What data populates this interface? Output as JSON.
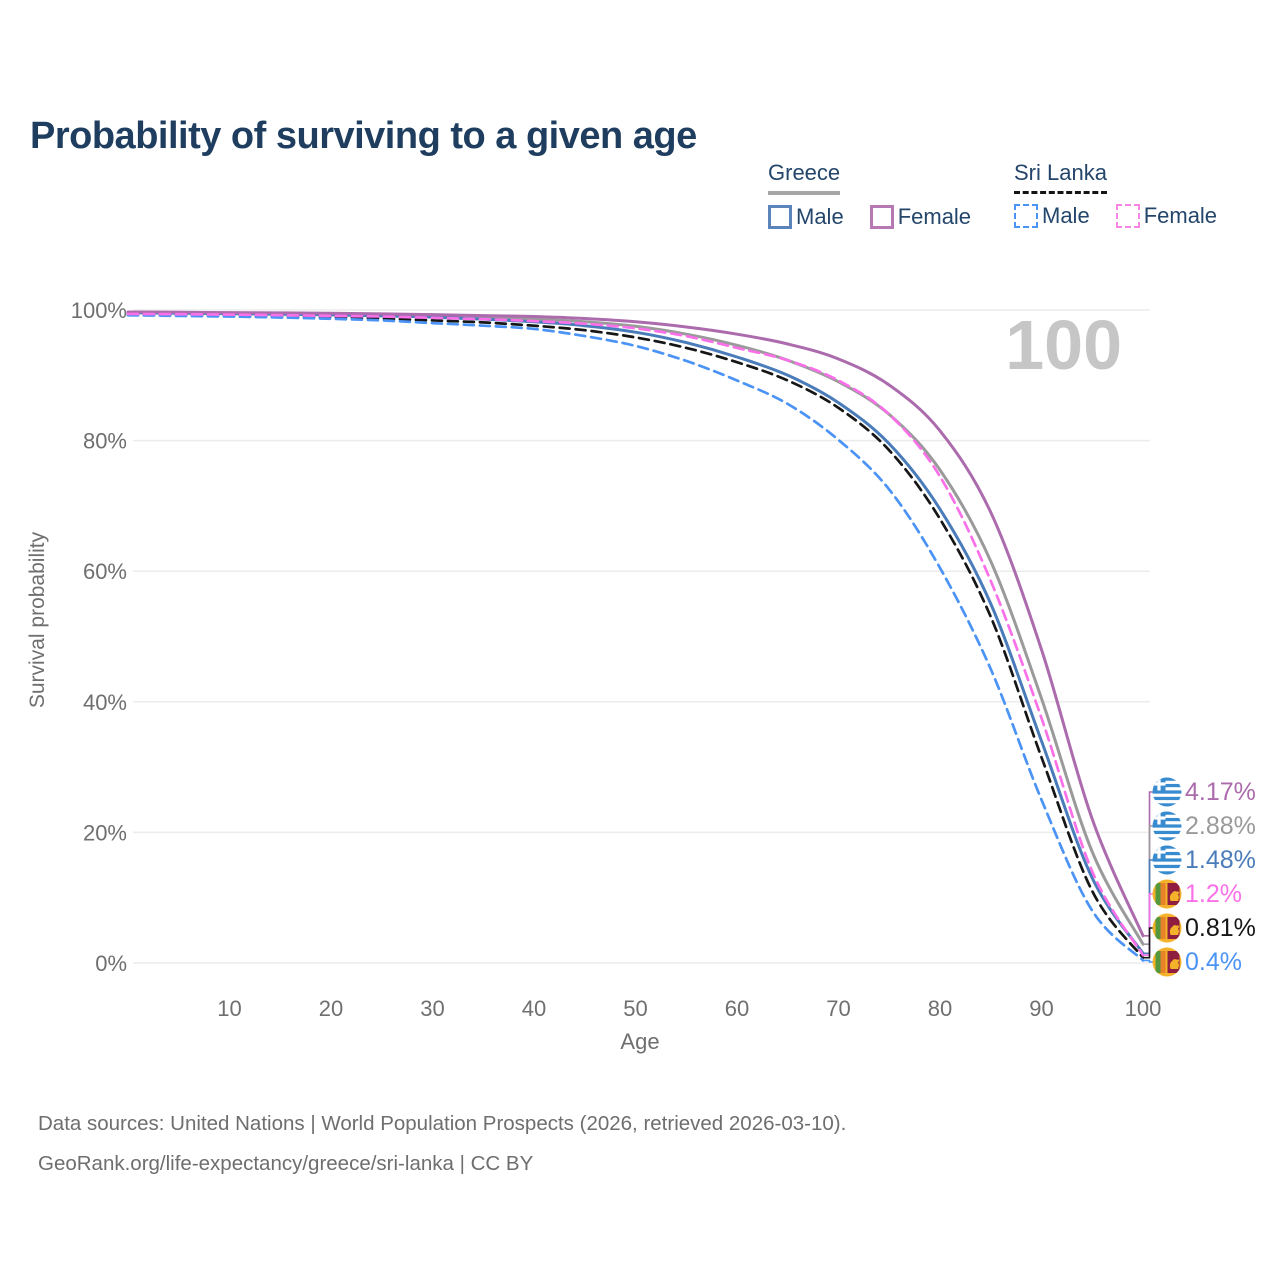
{
  "title": "Probability of surviving to a given age",
  "legend": {
    "greece": {
      "label": "Greece",
      "male": "Male",
      "female": "Female"
    },
    "sri_lanka": {
      "label": "Sri Lanka",
      "male": "Male",
      "female": "Female"
    }
  },
  "chart_data": {
    "type": "line",
    "title": "Probability of surviving to a given age",
    "xlabel": "Age",
    "ylabel": "Survival probability",
    "xlim": [
      0,
      100
    ],
    "ylim": [
      0,
      100
    ],
    "grid": "horizontal",
    "legend_position": "top-right",
    "age_marker": "100",
    "x_ticks": [
      10,
      20,
      30,
      40,
      50,
      60,
      70,
      80,
      90,
      100
    ],
    "y_ticks": [
      {
        "label": "0%",
        "value": 0
      },
      {
        "label": "20%",
        "value": 20
      },
      {
        "label": "40%",
        "value": 40
      },
      {
        "label": "60%",
        "value": 60
      },
      {
        "label": "80%",
        "value": 80
      },
      {
        "label": "100%",
        "value": 100
      }
    ],
    "ages": [
      0,
      5,
      10,
      15,
      20,
      25,
      30,
      35,
      40,
      45,
      50,
      55,
      60,
      65,
      70,
      75,
      80,
      85,
      90,
      95,
      100
    ],
    "series": [
      {
        "key": "greece-all",
        "name": "Greece (both sexes)",
        "color": "#9a9a9a",
        "dash": false,
        "values": [
          99.6,
          99.55,
          99.5,
          99.45,
          99.35,
          99.25,
          99.1,
          98.9,
          98.6,
          98.2,
          97.5,
          96.3,
          94.6,
          92.3,
          89.0,
          84.0,
          75.5,
          61.5,
          40.5,
          17.0,
          2.88
        ]
      },
      {
        "key": "greece-male",
        "name": "Greece Male",
        "color": "#4a7cba",
        "dash": false,
        "values": [
          99.6,
          99.5,
          99.45,
          99.35,
          99.25,
          99.1,
          98.9,
          98.6,
          98.2,
          97.6,
          96.6,
          95.0,
          92.8,
          90.0,
          85.8,
          79.5,
          69.5,
          55.0,
          34.0,
          13.0,
          1.48
        ]
      },
      {
        "key": "greece-female",
        "name": "Greece Female",
        "color": "#ab6bad",
        "dash": false,
        "values": [
          99.7,
          99.65,
          99.6,
          99.55,
          99.5,
          99.4,
          99.3,
          99.15,
          99.0,
          98.7,
          98.2,
          97.4,
          96.3,
          94.8,
          92.5,
          88.5,
          81.5,
          69.0,
          48.0,
          22.0,
          4.17
        ]
      },
      {
        "key": "srilanka-all",
        "name": "Sri Lanka (both sexes)",
        "color": "#161616",
        "dash": true,
        "values": [
          99.3,
          99.2,
          99.1,
          99.0,
          98.9,
          98.7,
          98.4,
          98.1,
          97.6,
          96.9,
          95.8,
          94.2,
          92.0,
          89.2,
          85.0,
          78.5,
          68.0,
          53.0,
          31.5,
          11.0,
          0.81
        ]
      },
      {
        "key": "srilanka-male",
        "name": "Sri Lanka Male",
        "color": "#4b93f5",
        "dash": true,
        "values": [
          99.2,
          99.1,
          99.0,
          98.85,
          98.65,
          98.4,
          98.0,
          97.6,
          97.1,
          96.0,
          94.5,
          92.2,
          89.2,
          85.6,
          80.1,
          72.5,
          60.5,
          45.0,
          25.0,
          8.0,
          0.4
        ]
      },
      {
        "key": "srilanka-female",
        "name": "Sri Lanka Female",
        "color": "#f970e8",
        "dash": true,
        "values": [
          99.4,
          99.35,
          99.3,
          99.2,
          99.1,
          99.0,
          98.8,
          98.6,
          98.3,
          97.9,
          97.2,
          96.0,
          94.2,
          92.3,
          89.2,
          84.0,
          74.5,
          58.5,
          37.5,
          14.0,
          1.2
        ]
      }
    ],
    "end_labels": [
      {
        "series": "greece-female",
        "flag": "greece",
        "value": "4.17%"
      },
      {
        "series": "greece-all",
        "flag": "greece",
        "value": "2.88%"
      },
      {
        "series": "greece-male",
        "flag": "greece",
        "value": "1.48%"
      },
      {
        "series": "srilanka-female",
        "flag": "sri-lanka",
        "value": "1.2%"
      },
      {
        "series": "srilanka-all",
        "flag": "sri-lanka",
        "value": "0.81%"
      },
      {
        "series": "srilanka-male",
        "flag": "sri-lanka",
        "value": "0.4%"
      }
    ]
  },
  "footer": {
    "line1": "Data sources: United Nations | World Population Prospects (2026, retrieved 2026-03-10).",
    "line2": "GeoRank.org/life-expectancy/greece/sri-lanka | CC BY"
  },
  "colors": {
    "title_text": "#1e3d5f",
    "legend_text": "#24466b",
    "axis_text": "#6f6f6f",
    "gridline": "#ececec",
    "watermark": "#c6c6c6",
    "greece_male": "#4a7cba",
    "greece_female": "#ab6bad",
    "greece_all": "#9a9a9a",
    "srilanka_male": "#4b93f5",
    "srilanka_female": "#f970e8",
    "srilanka_all": "#161616"
  }
}
